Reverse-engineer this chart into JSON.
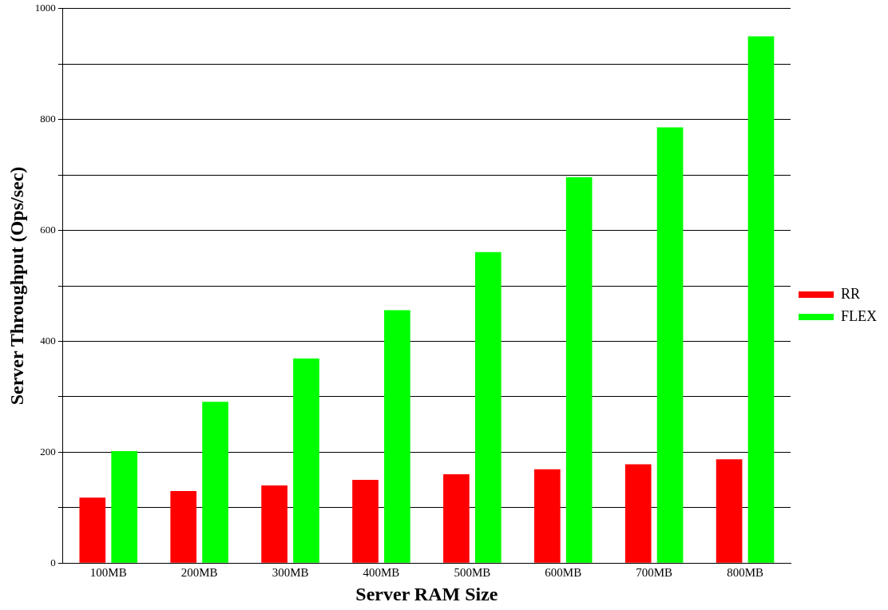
{
  "chart_data": {
    "type": "bar",
    "xlabel": "Server RAM Size",
    "ylabel": "Server Throughput (Ops/sec)",
    "categories": [
      "100MB",
      "200MB",
      "300MB",
      "400MB",
      "500MB",
      "600MB",
      "700MB",
      "800MB"
    ],
    "series": [
      {
        "name": "RR",
        "color": "#ff0000",
        "values": [
          118,
          130,
          140,
          150,
          160,
          169,
          178,
          187
        ]
      },
      {
        "name": "FLEX",
        "color": "#00ff00",
        "values": [
          202,
          291,
          369,
          456,
          561,
          696,
          786,
          950
        ]
      }
    ],
    "ylim": [
      0,
      1000
    ],
    "yticks": [
      0,
      {
        "value": 100,
        "label": null
      },
      200,
      {
        "value": 300,
        "label": null
      },
      400,
      {
        "value": 500,
        "label": null
      },
      600,
      {
        "value": 700,
        "label": null
      },
      800,
      {
        "value": 900,
        "label": null
      },
      1000
    ],
    "grid": "y",
    "legend": "right"
  }
}
